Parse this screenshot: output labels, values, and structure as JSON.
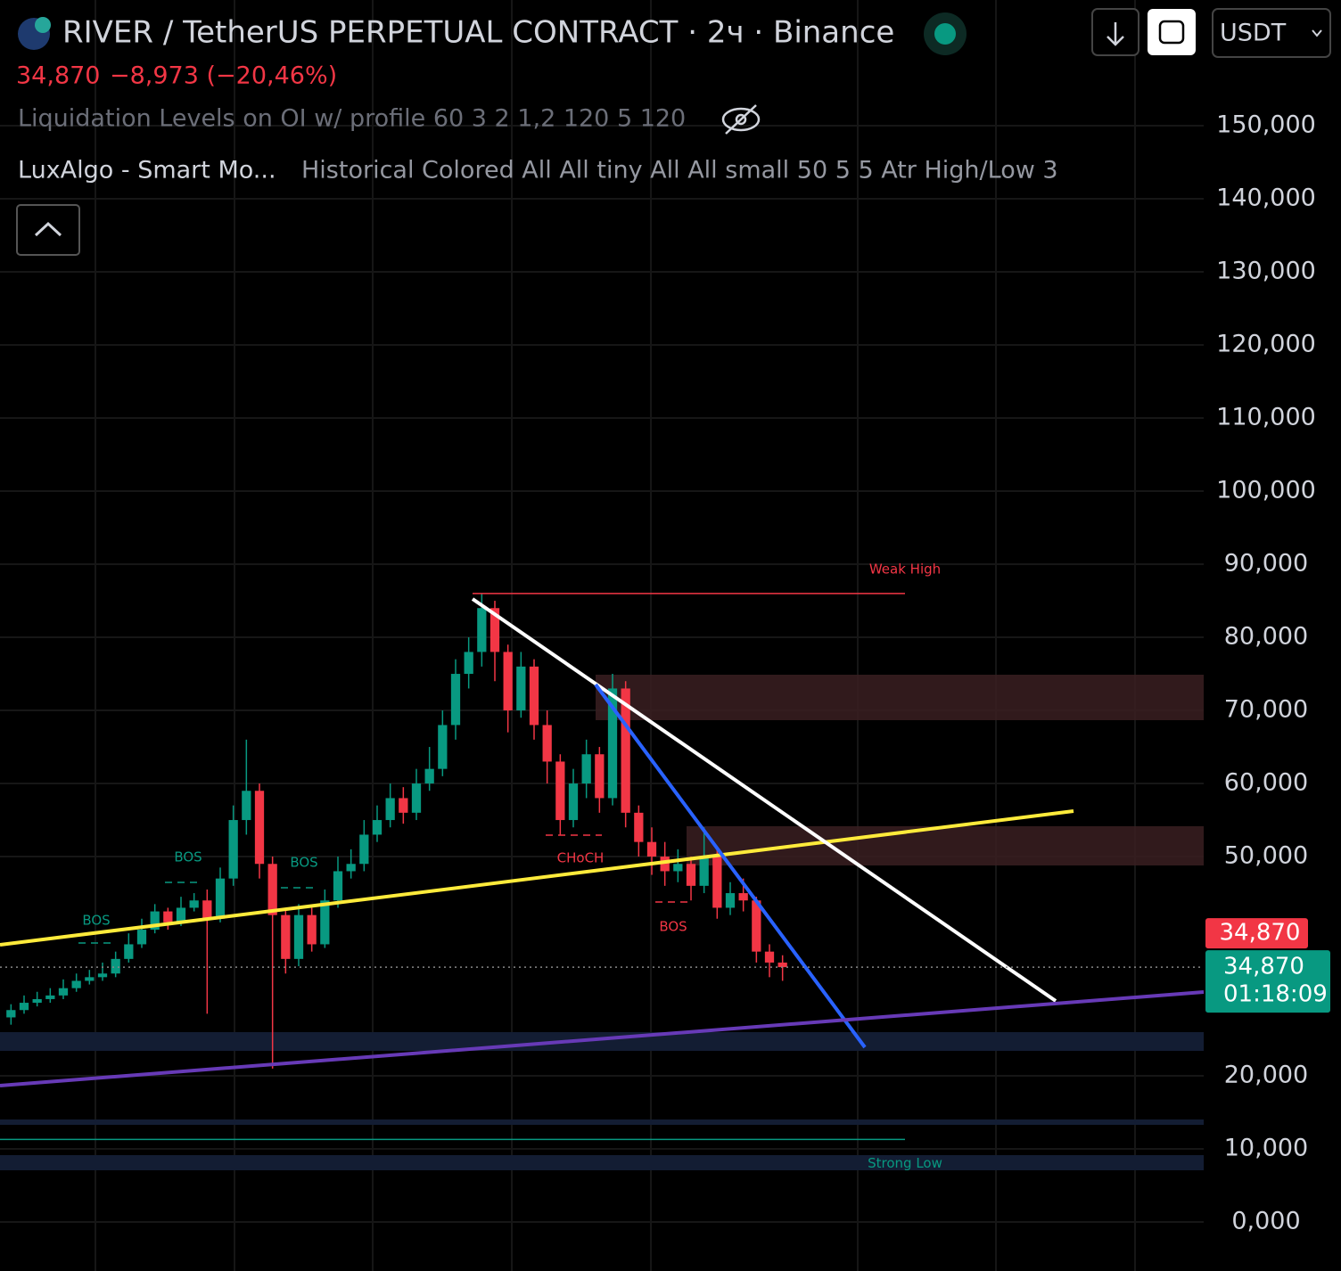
{
  "header": {
    "title": "RIVER / TetherUS PERPETUAL CONTRACT · 2ч · Binance",
    "last": "34,870",
    "change": "−8,973 (−20,46%)",
    "indicator_1": "Liquidation Levels on OI w/ profile 60 3 2 1,2 120 5 120",
    "indicator_2_name": "LuxAlgo - Smart Mo...",
    "indicator_2_params": "Historical Colored All All tiny All All small 50 5 5 Atr High/Low 3",
    "currency": "USDT"
  },
  "chart_data": {
    "type": "candlestick",
    "categories": [
      null,
      null,
      null,
      null,
      null,
      null,
      null,
      null,
      null,
      null,
      null,
      null,
      null,
      null,
      null,
      null,
      null,
      null,
      null,
      null,
      null,
      null,
      null,
      null,
      null,
      null,
      null,
      null,
      null,
      null,
      null,
      null,
      null,
      null,
      null,
      null,
      null,
      null,
      null,
      null,
      null,
      null,
      null,
      null,
      null,
      null,
      null,
      null,
      null,
      null,
      null,
      null,
      null,
      null,
      null,
      null,
      null,
      null,
      null,
      null
    ],
    "open": [
      28000,
      29000,
      30000,
      30500,
      31000,
      32000,
      33000,
      33500,
      34000,
      36000,
      38000,
      40000,
      42500,
      41000,
      43000,
      44000,
      41500,
      47000,
      55000,
      59000,
      49000,
      42000,
      36000,
      42000,
      38000,
      44000,
      48000,
      49000,
      53000,
      55000,
      58000,
      56000,
      60000,
      62000,
      68000,
      75000,
      78000,
      84000,
      78000,
      70000,
      76000,
      68000,
      63000,
      55000,
      60000,
      64000,
      58000,
      73000,
      56000,
      52000,
      50000,
      48000,
      49000,
      46000,
      50000,
      43000,
      45000,
      44000,
      37000,
      35500
    ],
    "high": [
      29800,
      31000,
      31500,
      32000,
      33200,
      34000,
      34500,
      35500,
      37000,
      39500,
      41500,
      43500,
      43000,
      44500,
      45000,
      45500,
      48500,
      57000,
      66000,
      60000,
      50000,
      43000,
      43500,
      43000,
      45500,
      50000,
      51000,
      55000,
      57000,
      60000,
      59500,
      62000,
      65000,
      70000,
      77000,
      80000,
      86000,
      85000,
      79000,
      78000,
      77000,
      70000,
      64000,
      62000,
      66000,
      65000,
      75000,
      74000,
      57000,
      54000,
      52000,
      51000,
      50000,
      54000,
      51000,
      46500,
      47000,
      44500,
      38000,
      36500
    ],
    "low": [
      27000,
      28500,
      29500,
      30000,
      30500,
      31500,
      32500,
      33000,
      33500,
      35500,
      37500,
      39500,
      40000,
      40500,
      42500,
      28500,
      41000,
      46000,
      53000,
      47000,
      21000,
      34000,
      35000,
      37000,
      37500,
      43000,
      47000,
      48000,
      52000,
      54000,
      54500,
      55000,
      59000,
      61000,
      66000,
      73000,
      76000,
      74000,
      67000,
      69000,
      66000,
      60000,
      53000,
      54000,
      58000,
      56000,
      57000,
      54000,
      50000,
      47500,
      46000,
      46500,
      44000,
      45000,
      41500,
      42000,
      42500,
      35500,
      33500,
      33000
    ],
    "close": [
      29000,
      30000,
      30500,
      31000,
      32000,
      33000,
      33500,
      34000,
      36000,
      38000,
      40000,
      42500,
      41000,
      43000,
      44000,
      41500,
      47000,
      55000,
      59000,
      49000,
      42000,
      36000,
      42000,
      38000,
      44000,
      48000,
      49000,
      53000,
      55000,
      58000,
      56000,
      60000,
      62000,
      68000,
      75000,
      78000,
      84000,
      78000,
      70000,
      76000,
      68000,
      63000,
      55000,
      60000,
      64000,
      58000,
      73000,
      56000,
      52000,
      50000,
      48000,
      49000,
      46000,
      50000,
      43000,
      45000,
      44000,
      37000,
      35500,
      34870
    ],
    "up_color": "#089981",
    "down_color": "#f23645",
    "ylim": [
      -6700,
      167200
    ],
    "yticks": [
      {
        "value": 150000,
        "label": "150,000"
      },
      {
        "value": 140000,
        "label": "140,000"
      },
      {
        "value": 130000,
        "label": "130,000"
      },
      {
        "value": 120000,
        "label": "120,000"
      },
      {
        "value": 110000,
        "label": "110,000"
      },
      {
        "value": 100000,
        "label": "100,000"
      },
      {
        "value": 90000,
        "label": "90,000"
      },
      {
        "value": 80000,
        "label": "80,000"
      },
      {
        "value": 70000,
        "label": "70,000"
      },
      {
        "value": 60000,
        "label": "60,000"
      },
      {
        "value": 50000,
        "label": "50,000"
      },
      {
        "value": 20000,
        "label": "20,000"
      },
      {
        "value": 10000,
        "label": "10,000"
      },
      {
        "value": 0,
        "label": "0,000"
      }
    ],
    "grid": true,
    "last_price": {
      "value": 34870,
      "label": "34,870"
    },
    "countdown": "01:18:09",
    "weak_high": {
      "value": 86000,
      "label": "Weak High"
    },
    "strong_low": {
      "value": 11300,
      "label": "Strong Low"
    },
    "annotations": [
      "BOS",
      "BOS",
      "BOS",
      "CHoCH",
      "BOS"
    ]
  }
}
